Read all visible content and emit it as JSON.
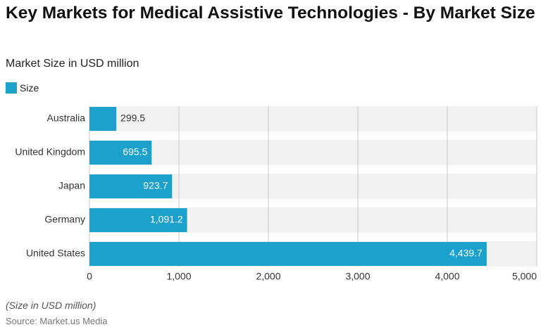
{
  "chart_data": {
    "type": "hbar",
    "title": "Key Markets for Medical Assistive Technologies - By Market Size",
    "subtitle": "Market Size in USD million",
    "categories": [
      "Australia",
      "United Kingdom",
      "Japan",
      "Germany",
      "United States"
    ],
    "series": [
      {
        "name": "Size",
        "color": "#1ba1cc",
        "values": [
          299.5,
          695.5,
          923.7,
          1091.2,
          4439.7
        ],
        "value_labels": [
          "299.5",
          "695.5",
          "923.7",
          "1,091.2",
          "4,439.7"
        ]
      }
    ],
    "xlim": [
      0,
      5000
    ],
    "xticks": [
      0,
      {
        "value": 1000,
        "label": "1,000"
      },
      {
        "value": 2000,
        "label": "2,000"
      },
      {
        "value": 3000,
        "label": "3,000"
      },
      {
        "value": 4000,
        "label": "4,000"
      },
      {
        "value": 5000,
        "label": "5,000"
      }
    ],
    "grid": true,
    "note": "(Size in USD million)",
    "source": "Source: Market.us Media"
  }
}
